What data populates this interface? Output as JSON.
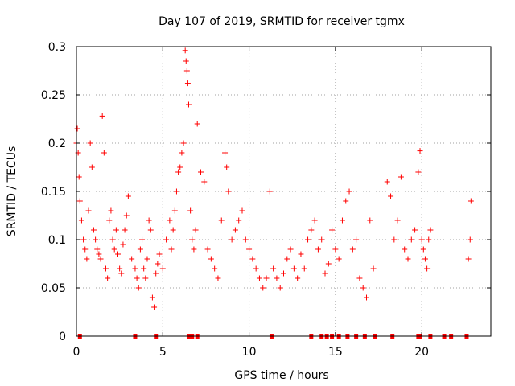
{
  "chart_data": {
    "type": "scatter",
    "title": "Day 107 of 2019, SRMTID for receiver tgmx",
    "xlabel": "GPS time / hours",
    "ylabel": "SRMTID / TECUs",
    "xlim": [
      0,
      24
    ],
    "ylim": [
      0,
      0.3
    ],
    "xticks": [
      0,
      5,
      10,
      15,
      20
    ],
    "xtick_labels": [
      "0",
      "5",
      "10",
      "15",
      "20"
    ],
    "yticks": [
      0,
      0.05,
      0.1,
      0.15,
      0.2,
      0.25,
      0.3
    ],
    "ytick_labels": [
      "0",
      "0.05",
      "0.1",
      "0.15",
      "0.2",
      "0.25",
      "0.3"
    ],
    "grid": true,
    "marker": "+",
    "color": "#ff0000",
    "series": [
      {
        "name": "SRMTID",
        "x": [
          0.0,
          0.05,
          0.1,
          0.15,
          0.2,
          0.3,
          0.4,
          0.5,
          0.6,
          0.7,
          0.8,
          0.9,
          1.0,
          1.1,
          1.2,
          1.3,
          1.4,
          1.5,
          1.6,
          1.7,
          1.8,
          1.9,
          2.0,
          2.1,
          2.2,
          2.3,
          2.4,
          2.5,
          2.6,
          2.7,
          2.8,
          2.9,
          3.0,
          3.2,
          3.4,
          3.5,
          3.6,
          3.7,
          3.8,
          3.9,
          4.0,
          4.1,
          4.2,
          4.3,
          4.4,
          4.5,
          4.6,
          4.7,
          4.8,
          5.0,
          5.2,
          5.4,
          5.5,
          5.6,
          5.7,
          5.8,
          5.9,
          6.0,
          6.1,
          6.2,
          6.3,
          6.35,
          6.4,
          6.45,
          6.5,
          6.6,
          6.7,
          6.8,
          6.9,
          7.0,
          7.2,
          7.4,
          7.6,
          7.8,
          8.0,
          8.2,
          8.4,
          8.6,
          8.7,
          8.8,
          9.0,
          9.2,
          9.4,
          9.6,
          9.8,
          10.0,
          10.2,
          10.4,
          10.6,
          10.8,
          11.0,
          11.2,
          11.4,
          11.6,
          11.8,
          12.0,
          12.2,
          12.4,
          12.6,
          12.8,
          13.0,
          13.2,
          13.4,
          13.6,
          13.8,
          14.0,
          14.2,
          14.4,
          14.6,
          14.8,
          15.0,
          15.2,
          15.4,
          15.6,
          15.8,
          16.0,
          16.2,
          16.4,
          16.6,
          16.8,
          17.0,
          17.2,
          18.0,
          18.2,
          18.4,
          18.6,
          18.8,
          19.0,
          19.2,
          19.4,
          19.6,
          19.8,
          19.9,
          20.0,
          20.1,
          20.2,
          20.3,
          20.4,
          20.5,
          22.7,
          22.8,
          22.85
        ],
        "y": [
          0.2,
          0.215,
          0.19,
          0.165,
          0.14,
          0.12,
          0.1,
          0.09,
          0.08,
          0.13,
          0.2,
          0.175,
          0.11,
          0.1,
          0.09,
          0.085,
          0.08,
          0.228,
          0.19,
          0.07,
          0.06,
          0.12,
          0.13,
          0.1,
          0.09,
          0.11,
          0.085,
          0.07,
          0.065,
          0.095,
          0.11,
          0.125,
          0.145,
          0.08,
          0.07,
          0.06,
          0.05,
          0.09,
          0.1,
          0.07,
          0.06,
          0.08,
          0.12,
          0.11,
          0.04,
          0.03,
          0.065,
          0.075,
          0.085,
          0.07,
          0.1,
          0.12,
          0.09,
          0.11,
          0.13,
          0.15,
          0.17,
          0.175,
          0.19,
          0.2,
          0.296,
          0.285,
          0.275,
          0.262,
          0.24,
          0.13,
          0.1,
          0.09,
          0.11,
          0.22,
          0.17,
          0.16,
          0.09,
          0.08,
          0.07,
          0.06,
          0.12,
          0.19,
          0.175,
          0.15,
          0.1,
          0.11,
          0.12,
          0.13,
          0.1,
          0.09,
          0.08,
          0.07,
          0.06,
          0.05,
          0.06,
          0.15,
          0.07,
          0.06,
          0.05,
          0.065,
          0.08,
          0.09,
          0.07,
          0.06,
          0.085,
          0.07,
          0.1,
          0.11,
          0.12,
          0.09,
          0.1,
          0.065,
          0.075,
          0.11,
          0.09,
          0.08,
          0.12,
          0.14,
          0.15,
          0.09,
          0.1,
          0.06,
          0.05,
          0.04,
          0.12,
          0.07,
          0.16,
          0.145,
          0.1,
          0.12,
          0.165,
          0.09,
          0.08,
          0.1,
          0.11,
          0.17,
          0.192,
          0.1,
          0.09,
          0.08,
          0.07,
          0.1,
          0.11,
          0.08,
          0.1,
          0.14
        ],
        "zero_x": [
          0.2,
          3.4,
          4.6,
          6.5,
          6.7,
          7.0,
          11.3,
          13.6,
          14.2,
          14.5,
          14.8,
          15.2,
          15.7,
          16.2,
          16.7,
          17.3,
          18.3,
          19.8,
          19.9,
          20.5,
          21.3,
          21.7,
          22.6
        ]
      }
    ]
  }
}
